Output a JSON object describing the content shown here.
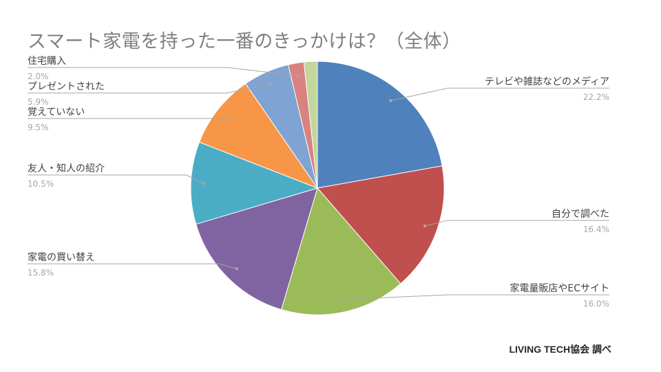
{
  "title": "スマート家電を持った一番のきっかけは？（全体）",
  "source": "LIVING TECH協会 調べ",
  "chart_data": {
    "type": "pie",
    "title": "スマート家電を持った一番のきっかけは？（全体）",
    "start_angle": "12 o'clock",
    "direction": "clockwise",
    "legend": "none",
    "slices": [
      {
        "label": "テレビや雑誌などのメディア",
        "value": 22.2,
        "value_label": "22.2%",
        "color": "#4f81bd"
      },
      {
        "label": "自分で調べた",
        "value": 16.4,
        "value_label": "16.4%",
        "color": "#c0504d"
      },
      {
        "label": "家電量販店やECサイト",
        "value": 16.0,
        "value_label": "16.0%",
        "color": "#9bbb59"
      },
      {
        "label": "家電の買い替え",
        "value": 15.8,
        "value_label": "15.8%",
        "color": "#8064a2"
      },
      {
        "label": "友人・知人の紹介",
        "value": 10.5,
        "value_label": "10.5%",
        "color": "#4bacc6"
      },
      {
        "label": "覚えていない",
        "value": 9.5,
        "value_label": "9.5%",
        "color": "#f79646"
      },
      {
        "label": "プレゼントされた",
        "value": 5.9,
        "value_label": "5.9%",
        "color": "#7fa3d2"
      },
      {
        "label": "住宅購入",
        "value": 2.0,
        "value_label": "2.0%",
        "color": "#d9827f"
      },
      {
        "label": "",
        "value": 1.7,
        "value_label": "",
        "color": "#c3d69b"
      }
    ]
  }
}
